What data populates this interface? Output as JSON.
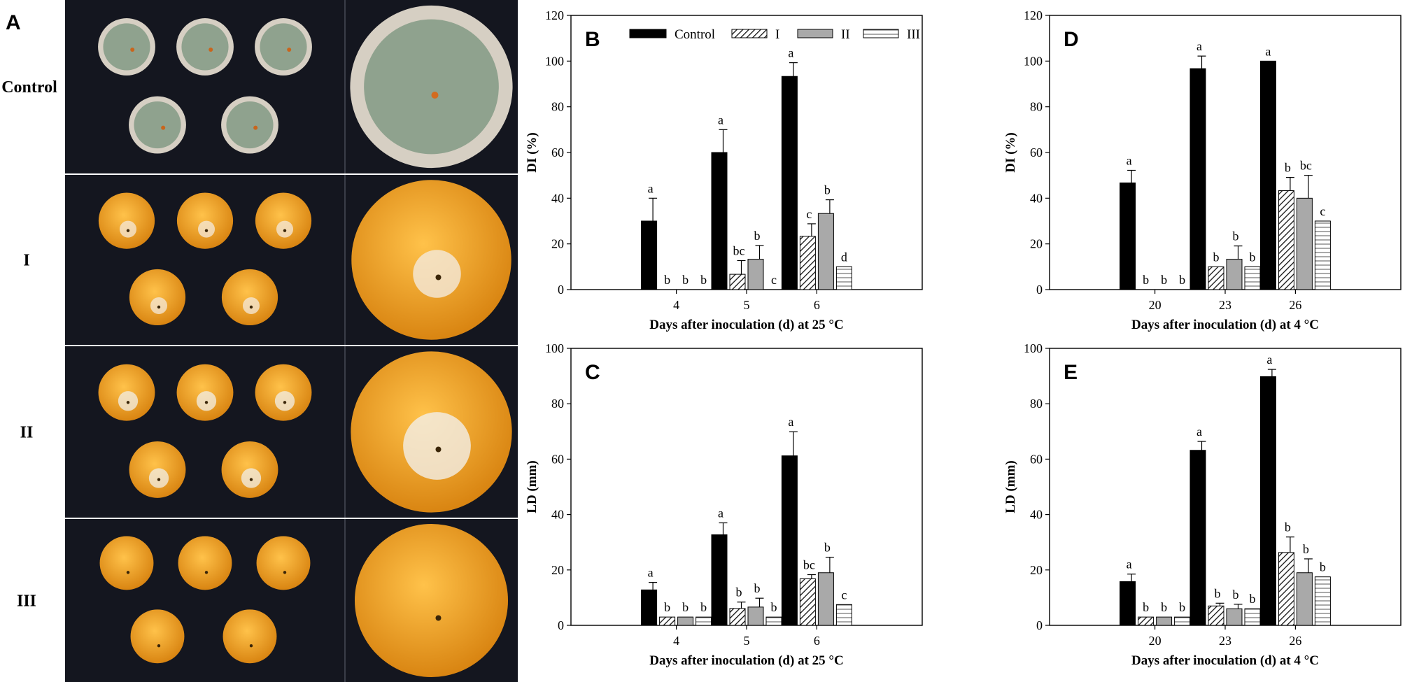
{
  "panel_a": {
    "label": "A",
    "rows": [
      {
        "label": "Control",
        "fruit_color": "#8fa28e",
        "rind_color": "#d6cfc3",
        "lesion_color": "#f3f1ea"
      },
      {
        "label": "I",
        "fruit_color": "#f0a21c",
        "rind_color": "#e7961b",
        "lesion_color": "#f4eadc"
      },
      {
        "label": "II",
        "fruit_color": "#e89b22",
        "rind_color": "#d98d1d",
        "lesion_color": "#f2efe8"
      },
      {
        "label": "III",
        "fruit_color": "#f4a51a",
        "rind_color": "#e9991a",
        "lesion_color": "#fff6e0"
      }
    ],
    "background_color": "#14161f"
  },
  "legend": {
    "entries": [
      "Control",
      "I",
      "II",
      "III"
    ]
  },
  "chart_data": [
    {
      "panel": "B",
      "type": "bar",
      "ylabel": "DI (%)",
      "xlabel": "Days after inoculation (d) at 25 °C",
      "ylim": [
        0,
        120
      ],
      "yticks": [
        "0",
        "20",
        "40",
        "60",
        "80",
        "100",
        "120"
      ],
      "categories": [
        "4",
        "5",
        "6"
      ],
      "series": [
        {
          "name": "Control",
          "values": [
            30,
            60,
            93.3
          ],
          "errors": [
            10,
            10,
            6
          ],
          "letters": [
            "a",
            "a",
            "a"
          ]
        },
        {
          "name": "I",
          "values": [
            0,
            6.7,
            23.3
          ],
          "errors": [
            0,
            6,
            5.5
          ],
          "letters": [
            "b",
            "bc",
            "c"
          ]
        },
        {
          "name": "II",
          "values": [
            0,
            13.3,
            33.3
          ],
          "errors": [
            0,
            6,
            6
          ],
          "letters": [
            "b",
            "b",
            "b"
          ]
        },
        {
          "name": "III",
          "values": [
            0,
            0,
            10
          ],
          "errors": [
            0,
            0,
            0
          ],
          "letters": [
            "b",
            "c",
            "d"
          ]
        }
      ]
    },
    {
      "panel": "C",
      "type": "bar",
      "ylabel": "LD (mm)",
      "xlabel": "Days after inoculation (d) at 25 °C",
      "ylim": [
        0,
        100
      ],
      "yticks": [
        "0",
        "20",
        "40",
        "60",
        "80",
        "100"
      ],
      "categories": [
        "4",
        "5",
        "6"
      ],
      "series": [
        {
          "name": "Control",
          "values": [
            12.8,
            32.7,
            61.2
          ],
          "errors": [
            2.7,
            4.3,
            8.7
          ],
          "letters": [
            "a",
            "a",
            "a"
          ]
        },
        {
          "name": "I",
          "values": [
            3,
            6.1,
            16.8
          ],
          "errors": [
            0,
            2.3,
            1.5
          ],
          "letters": [
            "b",
            "b",
            "bc"
          ]
        },
        {
          "name": "II",
          "values": [
            3,
            6.6,
            19
          ],
          "errors": [
            0,
            3.2,
            5.6
          ],
          "letters": [
            "b",
            "b",
            "b"
          ]
        },
        {
          "name": "III",
          "values": [
            3,
            3,
            7.5
          ],
          "errors": [
            0,
            0,
            0
          ],
          "letters": [
            "b",
            "b",
            "c"
          ]
        }
      ]
    },
    {
      "panel": "D",
      "type": "bar",
      "ylabel": "DI (%)",
      "xlabel": "Days after inoculation (d) at 4 °C",
      "ylim": [
        0,
        120
      ],
      "yticks": [
        "0",
        "20",
        "40",
        "60",
        "80",
        "100",
        "120"
      ],
      "categories": [
        "20",
        "23",
        "26"
      ],
      "series": [
        {
          "name": "Control",
          "values": [
            46.7,
            96.7,
            100
          ],
          "errors": [
            5.5,
            5.5,
            0
          ],
          "letters": [
            "a",
            "a",
            "a"
          ]
        },
        {
          "name": "I",
          "values": [
            0,
            10,
            43.3
          ],
          "errors": [
            0,
            0,
            5.8
          ],
          "letters": [
            "b",
            "b",
            "b"
          ]
        },
        {
          "name": "II",
          "values": [
            0,
            13.3,
            40
          ],
          "errors": [
            0,
            5.8,
            10
          ],
          "letters": [
            "b",
            "b",
            "bc"
          ]
        },
        {
          "name": "III",
          "values": [
            0,
            10,
            30
          ],
          "errors": [
            0,
            0,
            0
          ],
          "letters": [
            "b",
            "b",
            "c"
          ]
        }
      ]
    },
    {
      "panel": "E",
      "type": "bar",
      "ylabel": "LD (mm)",
      "xlabel": "Days after inoculation (d) at 4 °C",
      "ylim": [
        0,
        100
      ],
      "yticks": [
        "0",
        "20",
        "40",
        "60",
        "80",
        "100"
      ],
      "categories": [
        "20",
        "23",
        "26"
      ],
      "series": [
        {
          "name": "Control",
          "values": [
            15.8,
            63.2,
            89.8
          ],
          "errors": [
            2.7,
            3.2,
            2.6
          ],
          "letters": [
            "a",
            "a",
            "a"
          ]
        },
        {
          "name": "I",
          "values": [
            3,
            7,
            26.3
          ],
          "errors": [
            0,
            1,
            5.6
          ],
          "letters": [
            "b",
            "b",
            "b"
          ]
        },
        {
          "name": "II",
          "values": [
            3,
            6,
            19
          ],
          "errors": [
            0,
            1.6,
            5
          ],
          "letters": [
            "b",
            "b",
            "b"
          ]
        },
        {
          "name": "III",
          "values": [
            3,
            6,
            17.5
          ],
          "errors": [
            0,
            0,
            0
          ],
          "letters": [
            "b",
            "b",
            "b"
          ]
        }
      ]
    }
  ]
}
